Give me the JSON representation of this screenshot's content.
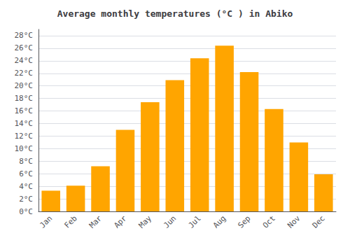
{
  "chart_data": {
    "type": "bar",
    "title": "Average monthly temperatures (°C ) in Abiko",
    "categories": [
      "Jan",
      "Feb",
      "Mar",
      "Apr",
      "May",
      "Jun",
      "Jul",
      "Aug",
      "Sep",
      "Oct",
      "Nov",
      "Dec"
    ],
    "values": [
      3.3,
      4.1,
      7.2,
      13.0,
      17.4,
      20.9,
      24.4,
      26.4,
      22.2,
      16.3,
      11.0,
      5.9
    ],
    "color": "#FFA500",
    "ylim": [
      0,
      29
    ],
    "yticks": [
      {
        "value": 0,
        "label": "0°C"
      },
      {
        "value": 2,
        "label": "2°C"
      },
      {
        "value": 4,
        "label": "4°C"
      },
      {
        "value": 6,
        "label": "6°C"
      },
      {
        "value": 8,
        "label": "8°C"
      },
      {
        "value": 10,
        "label": "10°C"
      },
      {
        "value": 12,
        "label": "12°C"
      },
      {
        "value": 14,
        "label": "14°C"
      },
      {
        "value": 16,
        "label": "16°C"
      },
      {
        "value": 18,
        "label": "18°C"
      },
      {
        "value": 20,
        "label": "20°C"
      },
      {
        "value": 22,
        "label": "22°C"
      },
      {
        "value": 24,
        "label": "24°C"
      },
      {
        "value": 26,
        "label": "26°C"
      },
      {
        "value": 28,
        "label": "28°C"
      }
    ],
    "grid": true
  }
}
